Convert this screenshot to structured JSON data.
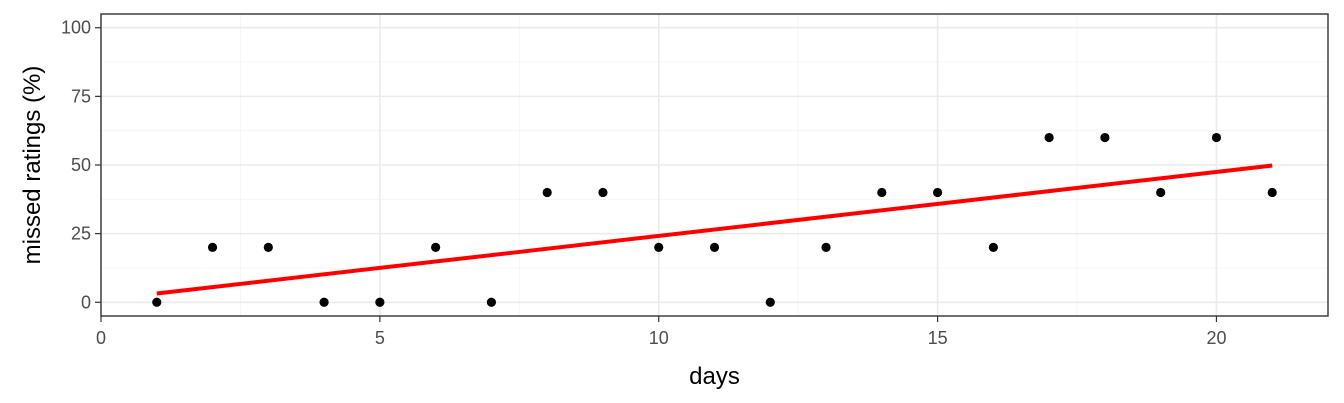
{
  "chart_data": {
    "type": "scatter",
    "title": "",
    "xlabel": "days",
    "ylabel": "missed ratings (%)",
    "xlim": [
      0,
      22
    ],
    "ylim": [
      -5,
      105
    ],
    "x_ticks": [
      0,
      5,
      10,
      15,
      20
    ],
    "y_ticks": [
      0,
      25,
      50,
      75,
      100
    ],
    "x_tick_labels": [
      "0",
      "5",
      "10",
      "15",
      "20"
    ],
    "y_tick_labels": [
      "0",
      "25",
      "50",
      "75",
      "100"
    ],
    "grid": true,
    "point_color": "#000000",
    "trend_color": "#ff0000",
    "points": {
      "x": [
        1,
        2,
        3,
        4,
        5,
        6,
        7,
        8,
        9,
        10,
        11,
        12,
        13,
        14,
        15,
        16,
        17,
        18,
        19,
        20,
        21
      ],
      "y": [
        0,
        20,
        20,
        0,
        0,
        20,
        0,
        40,
        40,
        20,
        20,
        0,
        20,
        40,
        40,
        20,
        60,
        60,
        40,
        60,
        40
      ]
    },
    "trend_line": {
      "type": "linear",
      "x": [
        1,
        21
      ],
      "y": [
        3.2,
        49.8
      ]
    }
  }
}
